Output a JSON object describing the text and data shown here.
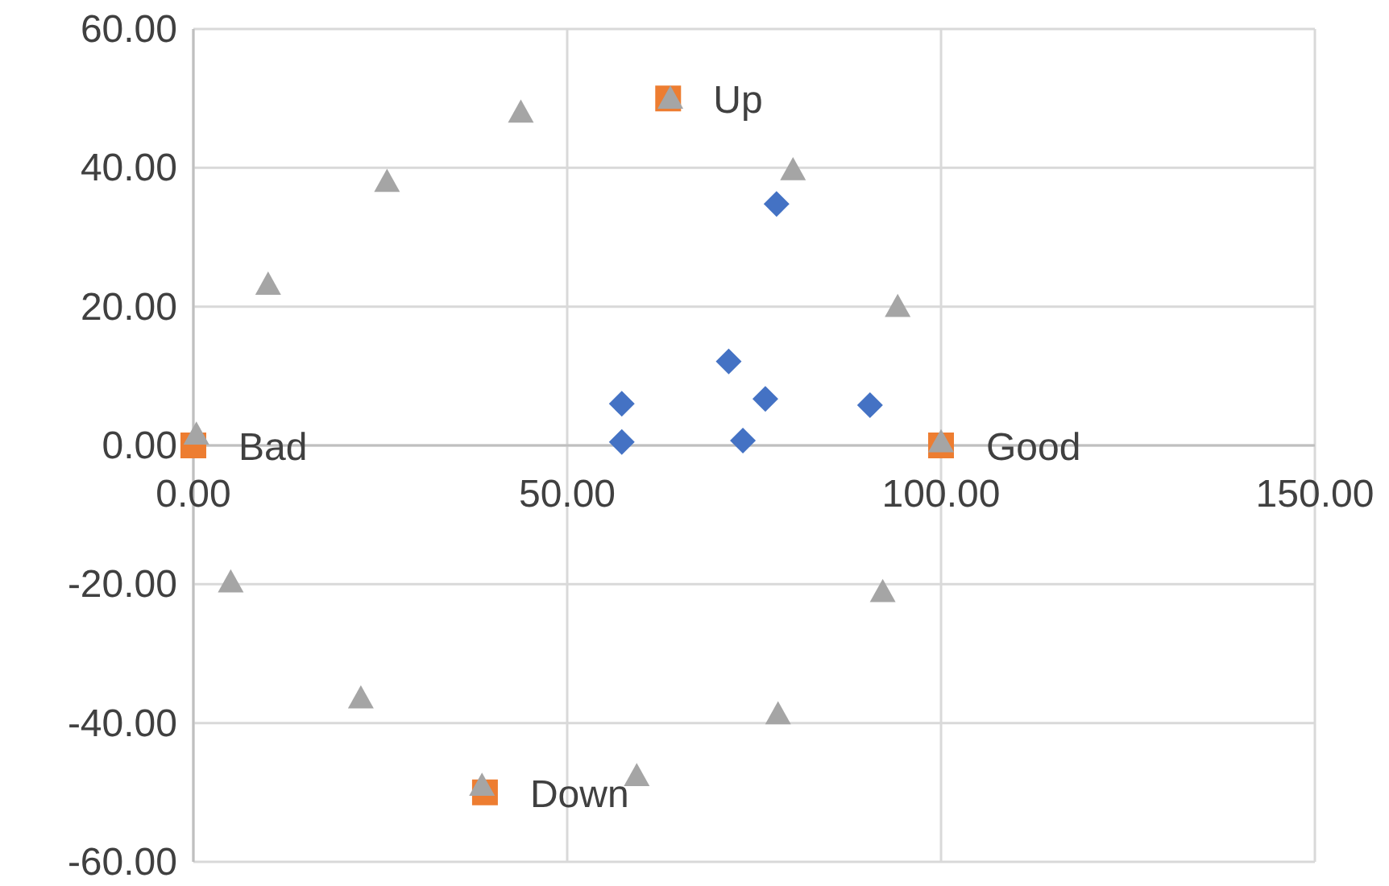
{
  "chart_data": {
    "type": "scatter",
    "xlim": [
      0,
      150
    ],
    "ylim": [
      -60,
      60
    ],
    "xticks": [
      {
        "value": 0,
        "label": "0.00"
      },
      {
        "value": 50,
        "label": "50.00"
      },
      {
        "value": 100,
        "label": "100.00"
      },
      {
        "value": 150,
        "label": "150.00"
      }
    ],
    "yticks": [
      {
        "value": -60,
        "label": "-60.00"
      },
      {
        "value": -40,
        "label": "-40.00"
      },
      {
        "value": -20,
        "label": "-20.00"
      },
      {
        "value": 0,
        "label": "0.00"
      },
      {
        "value": 20,
        "label": "20.00"
      },
      {
        "value": 40,
        "label": "40.00"
      },
      {
        "value": 60,
        "label": "60.00"
      }
    ],
    "grid": true,
    "series": [
      {
        "color": "#4472c4",
        "marker": "diamond",
        "x": [
          57.3,
          57.3,
          71.6,
          76.5,
          73.5,
          78,
          90.5
        ],
        "values": [
          6,
          0.5,
          12.1,
          6.7,
          0.7,
          34.8,
          5.8
        ]
      },
      {
        "color": "#ed7d31",
        "marker": "square",
        "x": [
          0,
          100,
          63.5,
          39
        ],
        "values": [
          0,
          0,
          50,
          -50
        ]
      },
      {
        "color": "#a5a5a5",
        "marker": "triangle",
        "x": [
          0.4,
          5,
          10,
          22.4,
          25.9,
          38.6,
          43.8,
          59.3,
          63.8,
          78.2,
          80.2,
          92.2,
          94.2,
          100
        ],
        "values": [
          1.6,
          -19.7,
          23.2,
          -36.4,
          38,
          -49,
          48,
          -47.6,
          50,
          -38.7,
          39.7,
          -21.1,
          20,
          0.5
        ]
      }
    ],
    "annotations": [
      {
        "text": "Bad",
        "x": 0,
        "y": 0
      },
      {
        "text": "Good",
        "x": 100,
        "y": 0
      },
      {
        "text": "Up",
        "x": 63.5,
        "y": 50
      },
      {
        "text": "Down",
        "x": 39,
        "y": -50
      }
    ]
  }
}
